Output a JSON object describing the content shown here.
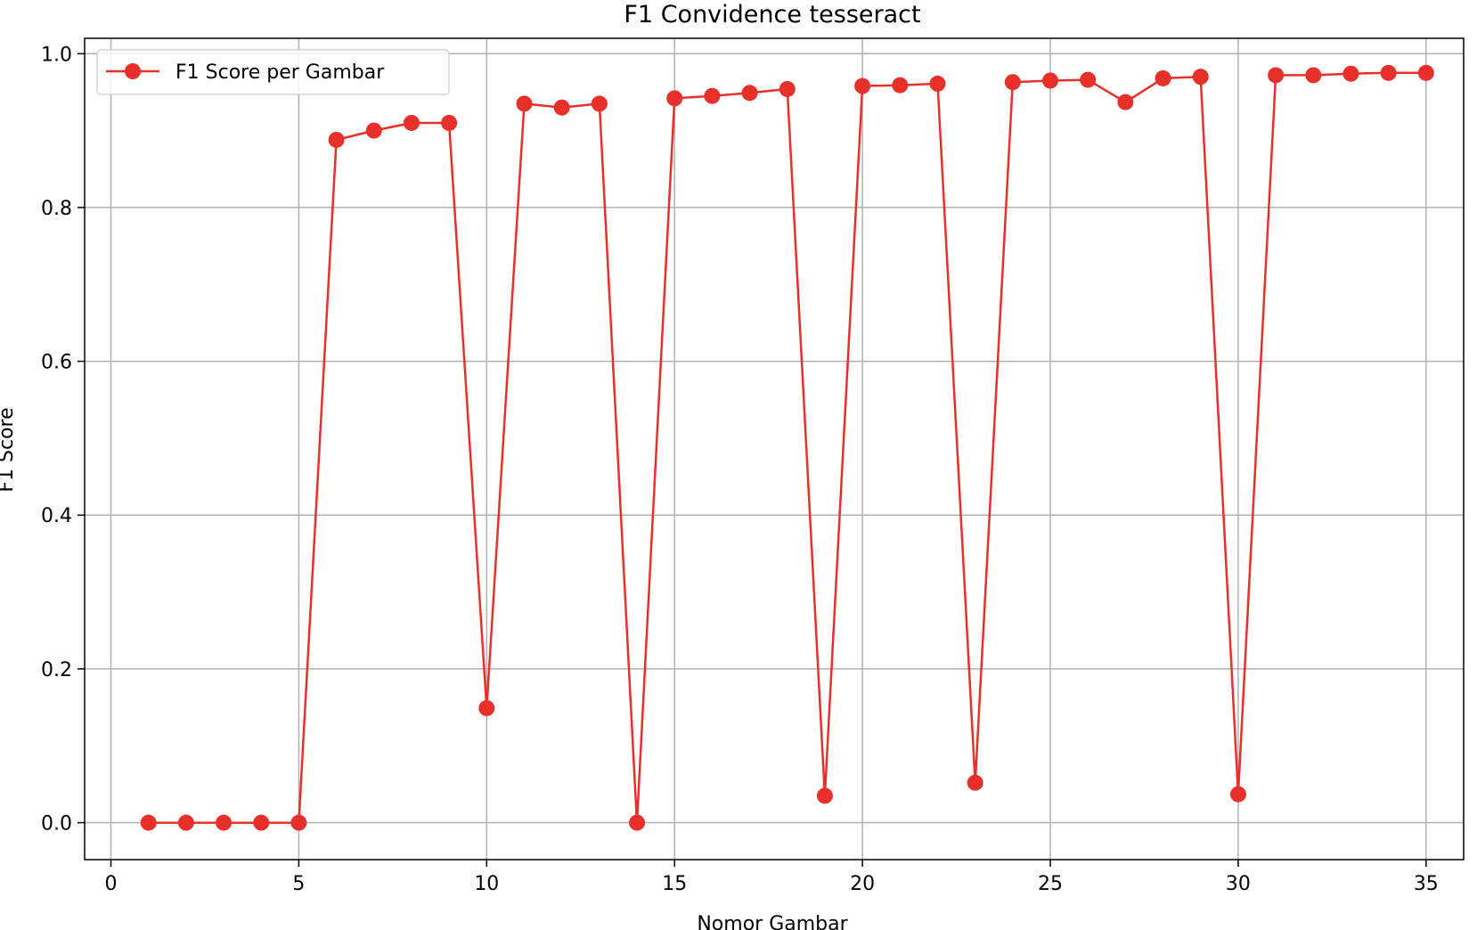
{
  "chart_data": {
    "type": "line",
    "title": "F1 Convidence tesseract",
    "xlabel": "Nomor Gambar",
    "ylabel": "F1 Score",
    "xlim": [
      -0.7,
      36.0
    ],
    "ylim": [
      -0.048,
      1.02
    ],
    "xticks": [
      0,
      5,
      10,
      15,
      20,
      25,
      30,
      35
    ],
    "yticks": [
      0.0,
      0.2,
      0.4,
      0.6,
      0.8,
      1.0
    ],
    "ytick_labels": [
      "0.0",
      "0.2",
      "0.4",
      "0.6",
      "0.8",
      "1.0"
    ],
    "grid": true,
    "legend": {
      "position": "top-left",
      "entries": [
        "F1 Score per Gambar"
      ]
    },
    "series": [
      {
        "name": "F1 Score per Gambar",
        "color": "#e8302a",
        "marker": "circle",
        "x": [
          1,
          2,
          3,
          4,
          5,
          6,
          7,
          8,
          9,
          10,
          11,
          12,
          13,
          14,
          15,
          16,
          17,
          18,
          19,
          20,
          21,
          22,
          23,
          24,
          25,
          26,
          27,
          28,
          29,
          30,
          31,
          32,
          33,
          34,
          35
        ],
        "values": [
          0.0,
          0.0,
          0.0,
          0.0,
          0.0,
          0.888,
          0.9,
          0.91,
          0.91,
          0.149,
          0.935,
          0.93,
          0.935,
          0.0,
          0.942,
          0.945,
          0.949,
          0.954,
          0.035,
          0.958,
          0.959,
          0.961,
          0.052,
          0.963,
          0.965,
          0.966,
          0.937,
          0.968,
          0.97,
          0.037,
          0.972,
          0.972,
          0.974,
          0.975,
          0.975
        ]
      }
    ]
  }
}
